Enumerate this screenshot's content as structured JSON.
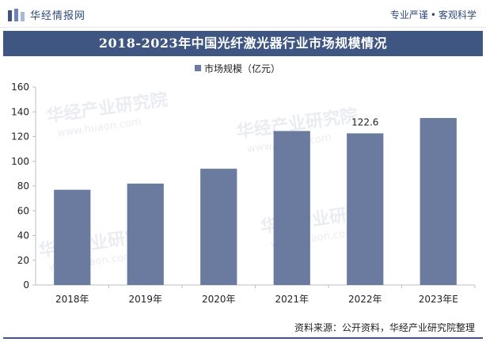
{
  "header": {
    "brand_name": "华经情报网",
    "slogan_left": "专业严谨",
    "slogan_right": "客观科学"
  },
  "watermark": {
    "cn": "华经产业研究院",
    "url": "www.huaon.com"
  },
  "chart_data": {
    "type": "bar",
    "title": "2018-2023年中国光纤激光器行业市场规模情况",
    "categories": [
      "2018年",
      "2019年",
      "2020年",
      "2021年",
      "2022年",
      "2023年E"
    ],
    "series": [
      {
        "name": "市场规模（亿元）",
        "values": [
          77,
          82,
          94,
          124.5,
          122.6,
          135
        ],
        "data_labels": [
          null,
          null,
          null,
          null,
          "122.6",
          null
        ]
      }
    ],
    "ylim": [
      0,
      160
    ],
    "yticks": [
      0,
      20,
      40,
      60,
      80,
      100,
      120,
      140,
      160
    ],
    "legend_position": "top-center",
    "grid": false,
    "bar_color": "#6b7ba0"
  },
  "footer": {
    "source": "资料来源：公开资料，华经产业研究院整理"
  }
}
